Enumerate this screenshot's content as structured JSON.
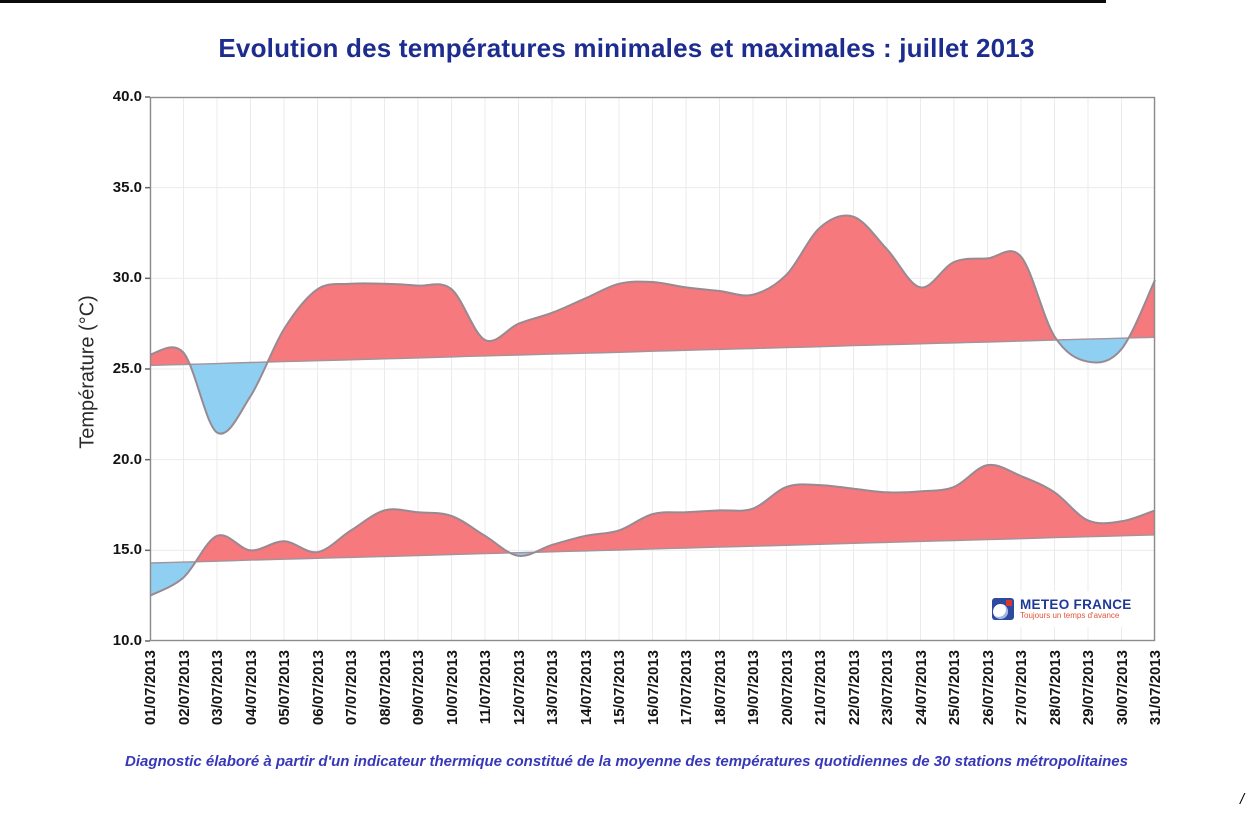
{
  "page": {
    "title": "Evolution des températures minimales et maximales : juillet 2013",
    "footer": "Diagnostic élaboré à partir d'un indicateur thermique constitué de la moyenne des températures quotidiennes de 30 stations métropolitaines",
    "corner_mark": "/",
    "logo": {
      "name": "METEO FRANCE",
      "tagline": "Toujours un temps d'avance"
    }
  },
  "chart_data": {
    "type": "area",
    "title": "Evolution des températures minimales et maximales : juillet 2013",
    "xlabel": "",
    "ylabel": "Température (°C)",
    "ylim": [
      10.0,
      40.0
    ],
    "y_tick_labels": [
      "40.0",
      "35.0",
      "30.0",
      "25.0",
      "20.0",
      "15.0",
      "10.0"
    ],
    "y_gridlines": [
      15,
      20,
      25,
      30,
      35
    ],
    "grid": true,
    "legend": false,
    "x": [
      "01/07/2013",
      "02/07/2013",
      "03/07/2013",
      "04/07/2013",
      "05/07/2013",
      "06/07/2013",
      "07/07/2013",
      "08/07/2013",
      "09/07/2013",
      "10/07/2013",
      "11/07/2013",
      "12/07/2013",
      "13/07/2013",
      "14/07/2013",
      "15/07/2013",
      "16/07/2013",
      "17/07/2013",
      "18/07/2013",
      "19/07/2013",
      "20/07/2013",
      "21/07/2013",
      "22/07/2013",
      "23/07/2013",
      "24/07/2013",
      "25/07/2013",
      "26/07/2013",
      "27/07/2013",
      "28/07/2013",
      "29/07/2013",
      "30/07/2013",
      "31/07/2013"
    ],
    "series": [
      {
        "name": "tmax_observed",
        "values": [
          25.8,
          25.9,
          21.5,
          23.5,
          27.2,
          29.4,
          29.7,
          29.7,
          29.6,
          29.4,
          26.6,
          27.5,
          28.1,
          28.9,
          29.7,
          29.8,
          29.5,
          29.3,
          29.1,
          30.2,
          32.8,
          33.4,
          31.6,
          29.5,
          30.9,
          31.1,
          31.2,
          26.8,
          25.4,
          26.1,
          29.9
        ]
      },
      {
        "name": "tmax_normal",
        "values": [
          25.2,
          25.25,
          25.3,
          25.36,
          25.41,
          25.46,
          25.51,
          25.56,
          25.61,
          25.67,
          25.72,
          25.77,
          25.82,
          25.87,
          25.92,
          25.98,
          26.03,
          26.08,
          26.13,
          26.18,
          26.23,
          26.29,
          26.34,
          26.39,
          26.44,
          26.49,
          26.54,
          26.6,
          26.65,
          26.7,
          26.75
        ]
      },
      {
        "name": "tmin_observed",
        "values": [
          12.5,
          13.5,
          15.8,
          15.0,
          15.5,
          14.9,
          16.1,
          17.2,
          17.1,
          16.9,
          15.8,
          14.7,
          15.3,
          15.8,
          16.1,
          17.0,
          17.1,
          17.2,
          17.3,
          18.5,
          18.6,
          18.4,
          18.2,
          18.25,
          18.5,
          19.7,
          19.1,
          18.2,
          16.65,
          16.6,
          17.2
        ]
      },
      {
        "name": "tmin_normal",
        "values": [
          14.3,
          14.35,
          14.4,
          14.46,
          14.51,
          14.56,
          14.61,
          14.66,
          14.71,
          14.77,
          14.82,
          14.87,
          14.92,
          14.97,
          15.02,
          15.08,
          15.13,
          15.18,
          15.23,
          15.28,
          15.33,
          15.39,
          15.44,
          15.49,
          15.54,
          15.59,
          15.64,
          15.7,
          15.75,
          15.8,
          15.85
        ]
      }
    ],
    "colors": {
      "above_normal": "#F5797D",
      "below_normal": "#8FD0F2",
      "curve_stroke": "#978A93",
      "normal_stroke": "#A5929A",
      "grid": "#EBEBEB",
      "axis": "#8C8C8C",
      "title": "#1D2D8F",
      "footer": "#3838BA"
    }
  }
}
